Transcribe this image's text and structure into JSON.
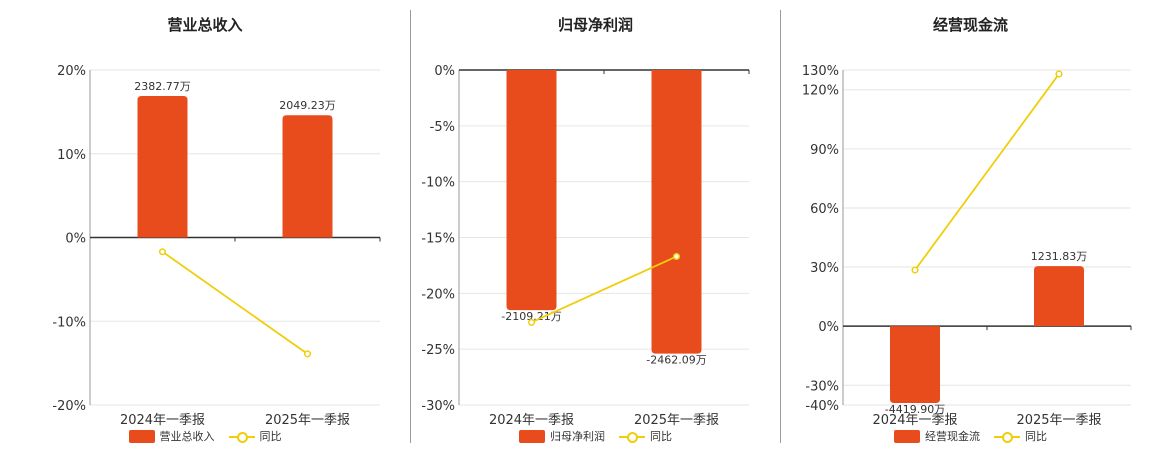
{
  "colors": {
    "bar": "#e84c1c",
    "line": "#f1cd0b",
    "axis": "#333333",
    "grid": "#e6e6e6"
  },
  "chart_data": [
    {
      "type": "bar",
      "title": "营业总收入",
      "categories": [
        "2024年一季报",
        "2025年一季报"
      ],
      "ylim": [
        -20,
        20
      ],
      "yticks": [
        20,
        10,
        0,
        -10,
        -20
      ],
      "ytick_labels": [
        "20%",
        "10%",
        "0%",
        "-10%",
        "-20%"
      ],
      "bar_values": [
        16.9,
        14.6
      ],
      "bar_labels": [
        "2382.77万",
        "2049.23万"
      ],
      "line_values": [
        -1.7,
        -13.9
      ],
      "legend": [
        "营业总收入",
        "同比"
      ]
    },
    {
      "type": "bar",
      "title": "归母净利润",
      "categories": [
        "2024年一季报",
        "2025年一季报"
      ],
      "ylim": [
        -30,
        0
      ],
      "yticks": [
        0,
        -5,
        -10,
        -15,
        -20,
        -25,
        -30
      ],
      "ytick_labels": [
        "0%",
        "-5%",
        "-10%",
        "-15%",
        "-20%",
        "-25%",
        "-30%"
      ],
      "bar_values": [
        -21.5,
        -25.4
      ],
      "bar_labels": [
        "-2109.21万",
        "-2462.09万"
      ],
      "line_values": [
        -22.6,
        -16.7
      ],
      "legend": [
        "归母净利润",
        "同比"
      ]
    },
    {
      "type": "bar",
      "title": "经营现金流",
      "categories": [
        "2024年一季报",
        "2025年一季报"
      ],
      "ylim": [
        -40,
        130
      ],
      "yticks": [
        130,
        120,
        90,
        60,
        30,
        0,
        -30,
        -40
      ],
      "ytick_labels": [
        "130%",
        "120%",
        "90%",
        "60%",
        "30%",
        "0%",
        "-30%",
        "-40%"
      ],
      "bar_values": [
        -39,
        30.5
      ],
      "bar_labels": [
        "-4419.90万",
        "1231.83万"
      ],
      "line_values": [
        28.5,
        128
      ],
      "legend": [
        "经营现金流",
        "同比"
      ]
    }
  ]
}
